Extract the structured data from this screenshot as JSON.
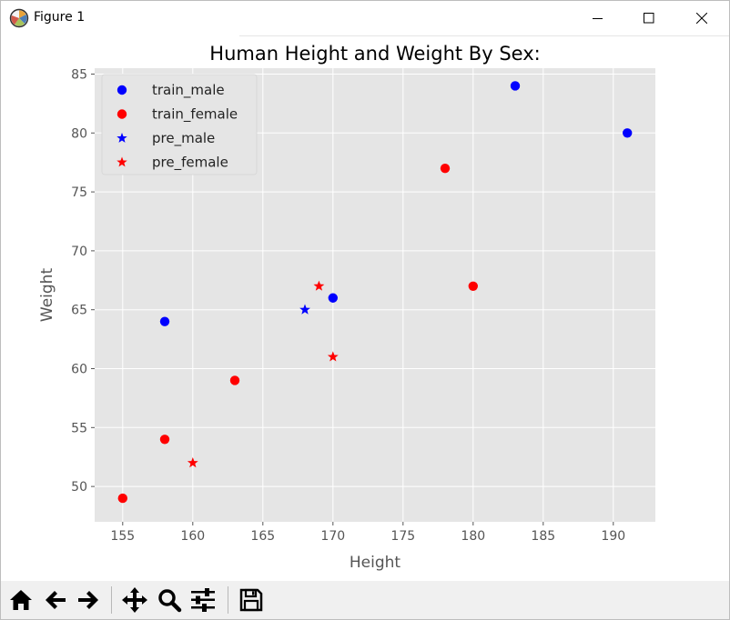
{
  "window": {
    "title": "Figure 1",
    "icons": {
      "app": "matplotlib-icon",
      "minimize": "minimize-icon",
      "maximize": "maximize-icon",
      "close": "close-icon"
    }
  },
  "toolbar": {
    "buttons": [
      {
        "name": "home-button",
        "icon": "home-icon"
      },
      {
        "name": "back-button",
        "icon": "arrow-left-icon"
      },
      {
        "name": "forward-button",
        "icon": "arrow-right-icon"
      },
      {
        "name": "pan-button",
        "icon": "move-icon"
      },
      {
        "name": "zoom-button",
        "icon": "magnifier-icon"
      },
      {
        "name": "configure-subplots-button",
        "icon": "sliders-icon"
      },
      {
        "name": "save-button",
        "icon": "floppy-disk-icon"
      }
    ]
  },
  "colors": {
    "axes_bg": "#e5e5e5",
    "grid": "#ffffff",
    "male": "#0000ff",
    "female": "#ff0000",
    "text": "#555555",
    "title": "#000000"
  },
  "chart_data": {
    "type": "scatter",
    "title": "Human Height and Weight By Sex:",
    "xlabel": "Height",
    "ylabel": "Weight",
    "xlim": [
      153,
      193
    ],
    "ylim": [
      47,
      85.5
    ],
    "xticks": [
      155,
      160,
      165,
      170,
      175,
      180,
      185,
      190
    ],
    "yticks": [
      50,
      55,
      60,
      65,
      70,
      75,
      80,
      85
    ],
    "grid": true,
    "legend_position": "top-left",
    "series": [
      {
        "name": "train_male",
        "marker": "circle",
        "color": "#0000ff",
        "points": [
          [
            158,
            64
          ],
          [
            170,
            66
          ],
          [
            183,
            84
          ],
          [
            191,
            80
          ]
        ]
      },
      {
        "name": "train_female",
        "marker": "circle",
        "color": "#ff0000",
        "points": [
          [
            155,
            49
          ],
          [
            158,
            54
          ],
          [
            163,
            59
          ],
          [
            178,
            77
          ],
          [
            180,
            67
          ]
        ]
      },
      {
        "name": "pre_male",
        "marker": "star",
        "color": "#0000ff",
        "points": [
          [
            168,
            65
          ]
        ]
      },
      {
        "name": "pre_female",
        "marker": "star",
        "color": "#ff0000",
        "points": [
          [
            160,
            52
          ],
          [
            169,
            67
          ],
          [
            170,
            61
          ]
        ]
      }
    ]
  }
}
